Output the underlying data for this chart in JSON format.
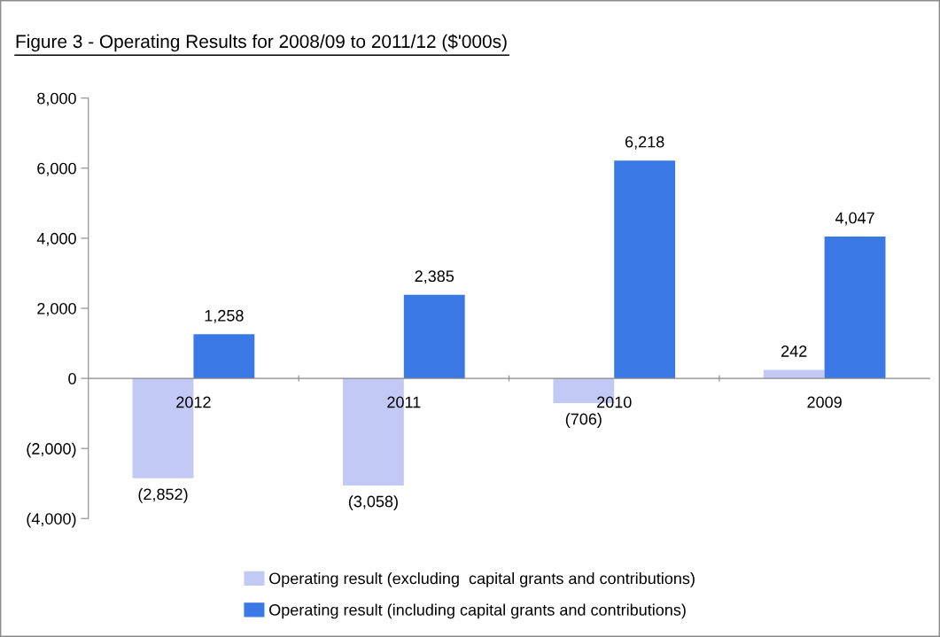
{
  "chart_data": {
    "type": "bar",
    "title": "Figure 3 - Operating Results for 2008/09 to 2011/12 ($'000s)",
    "categories": [
      "2012",
      "2011",
      "2010",
      "2009"
    ],
    "series": [
      {
        "name": "Operating result (excluding  capital grants and contributions)",
        "color": "#c3c9f5",
        "values": [
          -2852,
          -3058,
          -706,
          242
        ],
        "value_labels": [
          "(2,852)",
          "(3,058)",
          "(706)",
          "242"
        ]
      },
      {
        "name": "Operating result (including capital grants and contributions)",
        "color": "#3a78e6",
        "values": [
          1258,
          2385,
          6218,
          4047
        ],
        "value_labels": [
          "1,258",
          "2,385",
          "6,218",
          "4,047"
        ]
      }
    ],
    "ylim": [
      -4000,
      8000
    ],
    "yticks": [
      {
        "value": -4000,
        "label": "(4,000)"
      },
      {
        "value": -2000,
        "label": "(2,000)"
      },
      {
        "value": 0,
        "label": "0"
      },
      {
        "value": 2000,
        "label": "2,000"
      },
      {
        "value": 4000,
        "label": "4,000"
      },
      {
        "value": 6000,
        "label": "6,000"
      },
      {
        "value": 8000,
        "label": "8,000"
      }
    ],
    "grid": false,
    "legend": "bottom"
  }
}
